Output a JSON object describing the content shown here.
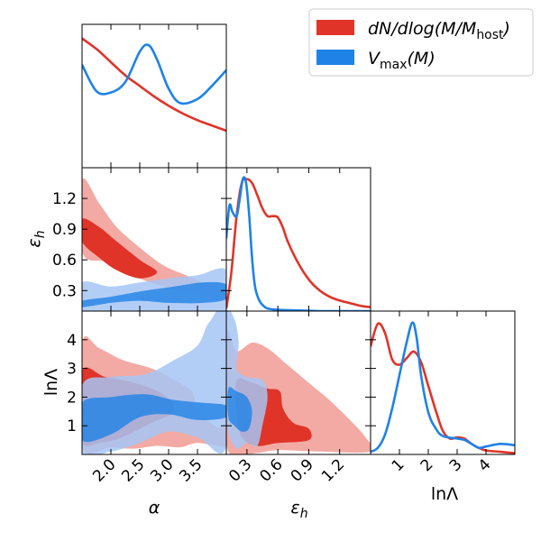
{
  "chart_data": {
    "type": "corner",
    "parameters": [
      {
        "name": "alpha",
        "label": "α",
        "range": [
          1.5,
          4.0
        ],
        "ticks": [
          2.0,
          2.5,
          3.0,
          3.5
        ],
        "tick_labels": [
          "2.0",
          "2.5",
          "3.0",
          "3.5"
        ]
      },
      {
        "name": "epsilon_h",
        "label": "εh",
        "range": [
          0.1,
          1.5
        ],
        "ticks": [
          0.3,
          0.6,
          0.9,
          1.2
        ],
        "tick_labels": [
          "0.3",
          "0.6",
          "0.9",
          "1.2"
        ]
      },
      {
        "name": "lnLambda",
        "label": "lnΛ",
        "range": [
          0.0,
          5.0
        ],
        "ticks": [
          1,
          2,
          3,
          4
        ],
        "tick_labels": [
          "1",
          "2",
          "3",
          "4"
        ]
      }
    ],
    "axis_labels": {
      "alpha": "α",
      "epsilon_h_main": "ε",
      "epsilon_h_sub": "h",
      "lnLambda": "lnΛ"
    },
    "legend": [
      {
        "label_main": "dN/dlog(M/M",
        "label_sub": "host",
        "label_end": ")",
        "color": "#e03428"
      },
      {
        "label_main": "V",
        "label_sub": "max",
        "label_end": "(M)",
        "color": "#1f82e6"
      }
    ],
    "series": [
      {
        "name": "dN/dlog(M/Mhost)",
        "color": "#e03428",
        "light_color": "#f3aaa4",
        "marginals": {
          "alpha": {
            "x": [
              1.5,
              1.75,
              2.0,
              2.25,
              2.5,
              2.75,
              3.0,
              3.25,
              3.5,
              3.75,
              4.0
            ],
            "y": [
              0.98,
              0.9,
              0.8,
              0.7,
              0.62,
              0.54,
              0.47,
              0.41,
              0.36,
              0.32,
              0.28
            ]
          },
          "epsilon_h": {
            "x": [
              0.1,
              0.15,
              0.2,
              0.25,
              0.3,
              0.35,
              0.4,
              0.45,
              0.5,
              0.55,
              0.6,
              0.65,
              0.7,
              0.8,
              0.9,
              1.0,
              1.1,
              1.2,
              1.3,
              1.4,
              1.5
            ],
            "y": [
              0.02,
              0.3,
              0.72,
              0.97,
              1.0,
              0.97,
              0.88,
              0.78,
              0.72,
              0.72,
              0.71,
              0.63,
              0.52,
              0.36,
              0.24,
              0.16,
              0.11,
              0.08,
              0.06,
              0.04,
              0.03
            ]
          },
          "lnLambda": {
            "x": [
              0.0,
              0.25,
              0.5,
              0.75,
              1.0,
              1.25,
              1.5,
              1.75,
              2.0,
              2.25,
              2.5,
              2.75,
              3.0,
              3.25,
              3.5,
              3.75,
              4.0,
              4.5,
              5.0
            ],
            "y": [
              0.82,
              0.99,
              0.92,
              0.72,
              0.68,
              0.73,
              0.78,
              0.7,
              0.52,
              0.34,
              0.18,
              0.12,
              0.13,
              0.12,
              0.08,
              0.05,
              0.03,
              0.02,
              0.01
            ]
          }
        },
        "contours": {
          "alpha_epsilon_h": {
            "outer": [
              [
                1.5,
                1.38
              ],
              [
                1.8,
                1.15
              ],
              [
                2.1,
                0.92
              ],
              [
                2.5,
                0.72
              ],
              [
                2.9,
                0.55
              ],
              [
                3.3,
                0.45
              ],
              [
                3.6,
                0.38
              ],
              [
                4.0,
                0.32
              ],
              [
                4.0,
                0.22
              ],
              [
                3.6,
                0.26
              ],
              [
                3.2,
                0.3
              ],
              [
                2.8,
                0.36
              ],
              [
                2.3,
                0.46
              ],
              [
                1.9,
                0.58
              ],
              [
                1.5,
                0.68
              ]
            ],
            "inner": [
              [
                1.5,
                1.0
              ],
              [
                1.8,
                0.92
              ],
              [
                2.1,
                0.78
              ],
              [
                2.5,
                0.6
              ],
              [
                2.8,
                0.48
              ],
              [
                2.5,
                0.42
              ],
              [
                2.1,
                0.5
              ],
              [
                1.8,
                0.62
              ],
              [
                1.5,
                0.78
              ]
            ]
          },
          "alpha_lnLambda": {
            "outer": [
              [
                1.5,
                3.9
              ],
              [
                1.8,
                3.7
              ],
              [
                2.2,
                3.3
              ],
              [
                2.7,
                3.0
              ],
              [
                3.1,
                2.6
              ],
              [
                3.4,
                2.2
              ],
              [
                3.5,
                1.6
              ],
              [
                3.8,
                1.0
              ],
              [
                4.0,
                0.9
              ],
              [
                4.0,
                0.3
              ],
              [
                3.5,
                0.4
              ],
              [
                3.2,
                0.25
              ],
              [
                2.8,
                0.3
              ],
              [
                2.4,
                0.2
              ],
              [
                2.0,
                0.25
              ],
              [
                1.5,
                0.3
              ]
            ],
            "inner": [
              [
                1.5,
                2.9
              ],
              [
                1.9,
                2.7
              ],
              [
                2.4,
                2.5
              ],
              [
                2.9,
                2.1
              ],
              [
                3.1,
                1.5
              ],
              [
                2.7,
                1.1
              ],
              [
                2.2,
                0.6
              ],
              [
                1.8,
                0.4
              ],
              [
                1.5,
                0.5
              ]
            ]
          },
          "epsilon_h_lnLambda": {
            "outer": [
              [
                0.1,
                4.2
              ],
              [
                0.2,
                3.6
              ],
              [
                0.35,
                3.9
              ],
              [
                0.5,
                3.7
              ],
              [
                0.7,
                3.1
              ],
              [
                0.9,
                2.5
              ],
              [
                1.1,
                1.9
              ],
              [
                1.3,
                1.2
              ],
              [
                1.45,
                0.6
              ],
              [
                1.5,
                0.1
              ],
              [
                1.0,
                0.1
              ],
              [
                0.6,
                0.15
              ],
              [
                0.4,
                0.05
              ],
              [
                0.2,
                0.0
              ],
              [
                0.1,
                0.5
              ]
            ],
            "inner": [
              [
                0.2,
                2.6
              ],
              [
                0.35,
                2.5
              ],
              [
                0.5,
                2.3
              ],
              [
                0.62,
                2.2
              ],
              [
                0.65,
                1.6
              ],
              [
                0.75,
                1.1
              ],
              [
                0.9,
                0.9
              ],
              [
                0.9,
                0.5
              ],
              [
                0.6,
                0.4
              ],
              [
                0.4,
                0.3
              ],
              [
                0.25,
                0.6
              ],
              [
                0.2,
                1.5
              ]
            ]
          }
        }
      },
      {
        "name": "Vmax(M)",
        "color": "#1f82e6",
        "light_color": "#a6c6f5",
        "marginals": {
          "alpha": {
            "x": [
              1.5,
              1.75,
              2.0,
              2.25,
              2.5,
              2.65,
              2.8,
              3.0,
              3.2,
              3.5,
              3.75,
              4.0
            ],
            "y": [
              0.78,
              0.58,
              0.57,
              0.65,
              0.88,
              0.93,
              0.82,
              0.6,
              0.49,
              0.52,
              0.62,
              0.74
            ]
          },
          "epsilon_h": {
            "x": [
              0.1,
              0.13,
              0.16,
              0.2,
              0.23,
              0.26,
              0.29,
              0.32,
              0.35,
              0.38,
              0.42,
              0.46,
              0.5,
              0.6,
              0.8,
              1.0,
              1.2,
              1.5
            ],
            "y": [
              0.55,
              0.8,
              0.75,
              0.72,
              0.85,
              1.0,
              0.98,
              0.75,
              0.4,
              0.18,
              0.08,
              0.04,
              0.02,
              0.01,
              0.005,
              0.0,
              0.0,
              0.0
            ]
          },
          "lnLambda": {
            "x": [
              0.0,
              0.25,
              0.5,
              0.75,
              1.0,
              1.25,
              1.45,
              1.6,
              1.75,
              2.0,
              2.25,
              2.5,
              3.0,
              3.25,
              3.5,
              3.75,
              4.0,
              4.5,
              5.0
            ],
            "y": [
              0.02,
              0.05,
              0.15,
              0.35,
              0.6,
              0.85,
              1.0,
              0.88,
              0.6,
              0.32,
              0.2,
              0.14,
              0.12,
              0.11,
              0.08,
              0.05,
              0.06,
              0.08,
              0.07
            ]
          }
        },
        "contours": {
          "alpha_epsilon_h": {
            "outer": [
              [
                1.5,
                0.38
              ],
              [
                2.0,
                0.34
              ],
              [
                2.5,
                0.38
              ],
              [
                3.0,
                0.42
              ],
              [
                3.5,
                0.45
              ],
              [
                4.0,
                0.5
              ],
              [
                4.0,
                0.1
              ],
              [
                1.5,
                0.1
              ]
            ],
            "inner": [
              [
                1.5,
                0.2
              ],
              [
                2.0,
                0.24
              ],
              [
                2.6,
                0.3
              ],
              [
                3.1,
                0.34
              ],
              [
                3.6,
                0.38
              ],
              [
                4.0,
                0.36
              ],
              [
                4.0,
                0.22
              ],
              [
                3.6,
                0.18
              ],
              [
                3.0,
                0.18
              ],
              [
                2.5,
                0.2
              ],
              [
                2.0,
                0.18
              ],
              [
                1.5,
                0.14
              ]
            ]
          },
          "alpha_lnLambda": {
            "outer": [
              [
                1.5,
                2.4
              ],
              [
                2.0,
                2.7
              ],
              [
                2.6,
                2.8
              ],
              [
                3.1,
                3.3
              ],
              [
                3.5,
                3.8
              ],
              [
                3.7,
                4.6
              ],
              [
                4.0,
                4.9
              ],
              [
                4.0,
                0.3
              ],
              [
                3.5,
                0.6
              ],
              [
                3.0,
                0.8
              ],
              [
                2.5,
                0.4
              ],
              [
                2.0,
                0.1
              ],
              [
                1.5,
                0.1
              ]
            ],
            "inner": [
              [
                1.5,
                1.8
              ],
              [
                2.0,
                2.0
              ],
              [
                2.6,
                2.1
              ],
              [
                3.1,
                1.9
              ],
              [
                3.6,
                1.8
              ],
              [
                4.0,
                1.7
              ],
              [
                4.0,
                1.3
              ],
              [
                3.5,
                1.2
              ],
              [
                3.0,
                1.4
              ],
              [
                2.5,
                1.3
              ],
              [
                2.0,
                0.7
              ],
              [
                1.5,
                0.5
              ]
            ]
          },
          "epsilon_h_lnLambda": {
            "outer": [
              [
                0.1,
                4.9
              ],
              [
                0.18,
                4.7
              ],
              [
                0.22,
                3.9
              ],
              [
                0.2,
                3.0
              ],
              [
                0.3,
                2.7
              ],
              [
                0.45,
                2.6
              ],
              [
                0.5,
                2.0
              ],
              [
                0.45,
                1.0
              ],
              [
                0.4,
                0.3
              ],
              [
                0.3,
                0.4
              ],
              [
                0.2,
                0.2
              ],
              [
                0.12,
                0.8
              ],
              [
                0.1,
                2.0
              ]
            ],
            "inner": [
              [
                0.12,
                2.3
              ],
              [
                0.2,
                2.2
              ],
              [
                0.3,
                2.0
              ],
              [
                0.35,
                1.5
              ],
              [
                0.32,
                0.9
              ],
              [
                0.25,
                0.8
              ],
              [
                0.18,
                1.0
              ],
              [
                0.12,
                1.3
              ]
            ]
          }
        }
      }
    ]
  }
}
